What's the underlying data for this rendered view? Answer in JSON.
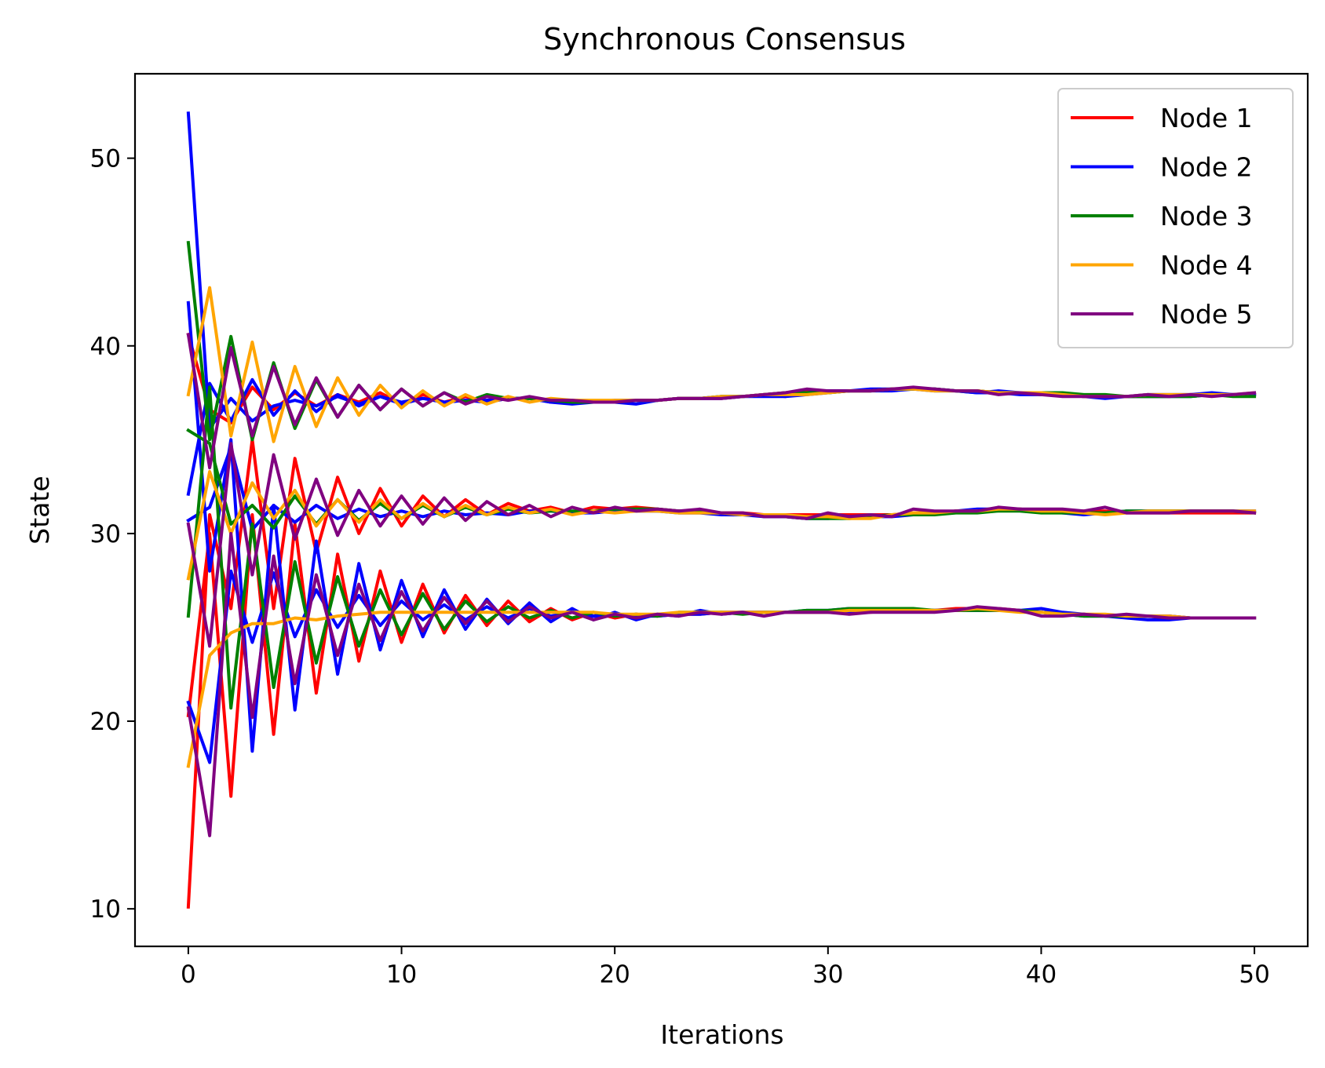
{
  "chart_data": {
    "type": "line",
    "title": "Synchronous Consensus",
    "xlabel": "Iterations",
    "ylabel": "State",
    "xlim": [
      -2.5,
      52.5
    ],
    "ylim": [
      8,
      54.5
    ],
    "xticks": [
      0,
      10,
      20,
      30,
      40,
      50
    ],
    "yticks": [
      10,
      20,
      30,
      40,
      50
    ],
    "grid": false,
    "legend_position": "top-right",
    "x": [
      0,
      1,
      2,
      3,
      4,
      5,
      6,
      7,
      8,
      9,
      10,
      11,
      12,
      13,
      14,
      15,
      16,
      17,
      18,
      19,
      20,
      21,
      22,
      23,
      24,
      25,
      26,
      27,
      28,
      29,
      30,
      31,
      32,
      33,
      34,
      35,
      36,
      37,
      38,
      39,
      40,
      41,
      42,
      43,
      44,
      45,
      46,
      47,
      48,
      49,
      50
    ],
    "series": [
      {
        "name": "Node 1",
        "color": "#ff0000",
        "runs": [
          [
            40.6,
            36.6,
            35.9,
            37.8,
            36.6,
            37.5,
            36.8,
            37.4,
            37.0,
            37.5,
            36.9,
            37.4,
            37.0,
            37.3,
            37.0,
            37.2,
            37.2,
            37.1,
            37.1,
            37.0,
            37.0,
            37.1,
            37.1,
            37.2,
            37.2,
            37.2,
            37.3,
            37.4,
            37.5,
            37.6,
            37.6,
            37.6,
            37.6,
            37.7,
            37.7,
            37.7,
            37.6,
            37.6,
            37.5,
            37.5,
            37.4,
            37.4,
            37.3,
            37.3,
            37.3,
            37.3,
            37.3,
            37.4,
            37.4,
            37.4,
            37.4
          ],
          [
            10.1,
            31.0,
            26.0,
            35.0,
            26.0,
            34.0,
            29.0,
            33.0,
            30.0,
            32.4,
            30.4,
            32.0,
            30.9,
            31.8,
            31.0,
            31.6,
            31.2,
            31.4,
            31.1,
            31.4,
            31.3,
            31.4,
            31.3,
            31.2,
            31.2,
            31.1,
            31.1,
            31.0,
            31.0,
            31.0,
            31.0,
            31.0,
            31.0,
            31.0,
            31.1,
            31.1,
            31.2,
            31.2,
            31.3,
            31.3,
            31.2,
            31.2,
            31.2,
            31.2,
            31.1,
            31.1,
            31.1,
            31.1,
            31.1,
            31.1,
            31.1
          ],
          [
            20.3,
            30.0,
            16.0,
            31.0,
            19.3,
            30.5,
            21.5,
            28.9,
            23.2,
            28.0,
            24.2,
            27.3,
            24.7,
            26.7,
            25.1,
            26.4,
            25.3,
            26.0,
            25.4,
            25.8,
            25.5,
            25.7,
            25.6,
            25.7,
            25.7,
            25.8,
            25.8,
            25.8,
            25.8,
            25.8,
            25.8,
            25.8,
            25.8,
            25.9,
            25.9,
            25.9,
            26.0,
            26.0,
            26.0,
            25.9,
            25.8,
            25.7,
            25.7,
            25.6,
            25.6,
            25.6,
            25.6,
            25.5,
            25.5,
            25.5,
            25.5
          ]
        ]
      },
      {
        "name": "Node 2",
        "color": "#0000ff",
        "runs": [
          [
            52.4,
            35.6,
            37.2,
            36.0,
            36.8,
            37.1,
            36.8,
            37.3,
            36.9,
            37.3,
            37.0,
            37.2,
            37.0,
            37.1,
            37.1,
            37.2,
            37.2,
            37.0,
            36.9,
            37.0,
            37.0,
            36.9,
            37.1,
            37.2,
            37.2,
            37.3,
            37.3,
            37.4,
            37.3,
            37.5,
            37.6,
            37.6,
            37.7,
            37.7,
            37.7,
            37.6,
            37.6,
            37.5,
            37.6,
            37.5,
            37.5,
            37.4,
            37.3,
            37.2,
            37.3,
            37.4,
            37.4,
            37.4,
            37.5,
            37.4,
            37.4
          ],
          [
            32.1,
            38.0,
            36.0,
            38.2,
            36.3,
            37.6,
            36.5,
            37.4,
            36.8,
            37.3,
            36.9,
            37.2,
            37.0,
            37.1,
            37.0,
            37.2,
            37.2,
            37.0,
            37.0,
            37.0,
            37.1,
            37.1,
            37.1,
            37.2,
            37.2,
            37.2,
            37.3,
            37.3,
            37.3,
            37.4,
            37.5,
            37.6,
            37.6,
            37.6,
            37.7,
            37.7,
            37.6,
            37.5,
            37.5,
            37.4,
            37.4,
            37.4,
            37.3,
            37.3,
            37.3,
            37.3,
            37.3,
            37.3,
            37.4,
            37.4,
            37.4
          ],
          [
            42.3,
            28.0,
            35.0,
            18.4,
            31.5,
            20.6,
            29.6,
            22.5,
            28.4,
            23.8,
            27.5,
            24.5,
            27.0,
            24.9,
            26.5,
            25.2,
            26.3,
            25.3,
            26.0,
            25.4,
            25.8,
            25.4,
            25.7,
            25.6,
            25.9,
            25.7,
            25.8,
            25.8,
            25.8,
            25.9,
            25.9,
            26.0,
            26.0,
            26.0,
            25.9,
            25.9,
            25.9,
            25.9,
            25.9,
            25.9,
            26.0,
            25.8,
            25.7,
            25.6,
            25.5,
            25.4,
            25.4,
            25.5,
            25.5,
            25.5,
            25.5
          ],
          [
            21.0,
            17.8,
            28.0,
            24.2,
            27.9,
            24.5,
            27.0,
            25.0,
            26.7,
            25.1,
            26.4,
            25.4,
            26.2,
            25.4,
            26.1,
            25.5,
            26.0,
            25.6,
            25.8,
            25.6,
            25.7,
            25.6,
            25.6,
            25.7,
            25.7,
            25.8,
            25.8,
            25.8,
            25.8,
            25.8,
            25.8,
            25.8,
            25.9,
            25.9,
            25.9,
            25.9,
            25.9,
            25.9,
            25.9,
            25.9,
            25.8,
            25.7,
            25.6,
            25.6,
            25.6,
            25.6,
            25.6,
            25.5,
            25.5,
            25.5,
            25.5
          ],
          [
            30.7,
            31.4,
            34.6,
            30.2,
            31.5,
            30.6,
            31.5,
            30.8,
            31.3,
            30.9,
            31.2,
            30.9,
            31.2,
            31.0,
            31.1,
            31.0,
            31.2,
            31.2,
            31.1,
            31.1,
            31.2,
            31.2,
            31.2,
            31.1,
            31.1,
            31.0,
            31.0,
            30.9,
            30.9,
            30.8,
            30.8,
            30.9,
            30.9,
            30.9,
            31.0,
            31.1,
            31.2,
            31.3,
            31.3,
            31.3,
            31.2,
            31.1,
            31.0,
            31.1,
            31.2,
            31.2,
            31.2,
            31.2,
            31.2,
            31.2,
            31.2
          ]
        ]
      },
      {
        "name": "Node 3",
        "color": "#008000",
        "runs": [
          [
            45.5,
            35.0,
            40.5,
            35.0,
            39.1,
            35.6,
            38.2,
            36.2,
            37.9,
            36.6,
            37.7,
            36.8,
            37.5,
            37.0,
            37.4,
            37.2,
            37.2,
            37.1,
            37.0,
            37.0,
            37.0,
            37.1,
            37.1,
            37.2,
            37.2,
            37.3,
            37.3,
            37.4,
            37.5,
            37.5,
            37.5,
            37.6,
            37.6,
            37.7,
            37.7,
            37.7,
            37.6,
            37.6,
            37.5,
            37.5,
            37.5,
            37.5,
            37.4,
            37.4,
            37.3,
            37.3,
            37.3,
            37.3,
            37.4,
            37.3,
            37.3
          ],
          [
            35.5,
            34.8,
            30.5,
            31.5,
            30.3,
            32.0,
            30.5,
            31.8,
            30.7,
            31.6,
            30.8,
            31.5,
            30.9,
            31.4,
            31.0,
            31.3,
            31.1,
            31.2,
            31.2,
            31.2,
            31.3,
            31.3,
            31.3,
            31.2,
            31.2,
            31.1,
            31.0,
            31.0,
            30.9,
            30.8,
            30.8,
            30.8,
            30.9,
            31.0,
            31.0,
            31.0,
            31.1,
            31.1,
            31.2,
            31.2,
            31.1,
            31.1,
            31.1,
            31.1,
            31.2,
            31.2,
            31.2,
            31.2,
            31.2,
            31.2,
            31.1
          ],
          [
            25.6,
            37.8,
            20.7,
            30.5,
            21.8,
            28.5,
            23.1,
            27.7,
            24.0,
            27.0,
            24.6,
            26.8,
            24.9,
            26.4,
            25.3,
            26.1,
            25.5,
            25.9,
            25.5,
            25.8,
            25.6,
            25.7,
            25.6,
            25.8,
            25.8,
            25.8,
            25.7,
            25.8,
            25.8,
            25.9,
            25.9,
            26.0,
            26.0,
            26.0,
            26.0,
            25.9,
            25.9,
            25.9,
            25.9,
            25.9,
            25.8,
            25.7,
            25.6,
            25.6,
            25.6,
            25.6,
            25.5,
            25.5,
            25.5,
            25.5,
            25.5
          ]
        ]
      },
      {
        "name": "Node 4",
        "color": "#ffa500",
        "runs": [
          [
            37.4,
            43.1,
            35.2,
            40.2,
            34.9,
            38.9,
            35.7,
            38.3,
            36.3,
            37.9,
            36.7,
            37.6,
            36.8,
            37.4,
            36.9,
            37.3,
            37.0,
            37.2,
            37.1,
            37.1,
            37.1,
            37.1,
            37.1,
            37.2,
            37.2,
            37.3,
            37.3,
            37.4,
            37.4,
            37.4,
            37.5,
            37.6,
            37.6,
            37.7,
            37.7,
            37.6,
            37.6,
            37.6,
            37.5,
            37.5,
            37.5,
            37.4,
            37.3,
            37.3,
            37.3,
            37.4,
            37.4,
            37.4,
            37.4,
            37.4,
            37.5
          ],
          [
            27.6,
            33.3,
            30.0,
            32.7,
            30.8,
            32.3,
            30.4,
            31.8,
            30.6,
            31.8,
            30.8,
            31.6,
            30.9,
            31.5,
            31.0,
            31.4,
            31.1,
            31.3,
            31.0,
            31.2,
            31.1,
            31.2,
            31.2,
            31.1,
            31.1,
            31.1,
            31.0,
            31.0,
            31.0,
            30.9,
            30.9,
            30.8,
            30.8,
            31.0,
            31.1,
            31.1,
            31.2,
            31.2,
            31.3,
            31.3,
            31.2,
            31.2,
            31.1,
            31.0,
            31.1,
            31.2,
            31.2,
            31.2,
            31.2,
            31.2,
            31.2
          ],
          [
            17.6,
            23.5,
            24.7,
            25.2,
            25.2,
            25.5,
            25.4,
            25.6,
            25.7,
            25.8,
            25.8,
            25.8,
            25.8,
            25.8,
            25.8,
            25.8,
            25.8,
            25.8,
            25.8,
            25.8,
            25.7,
            25.7,
            25.7,
            25.8,
            25.8,
            25.8,
            25.8,
            25.8,
            25.8,
            25.8,
            25.8,
            25.9,
            25.9,
            25.9,
            25.9,
            25.9,
            25.9,
            26.0,
            25.9,
            25.8,
            25.8,
            25.7,
            25.7,
            25.7,
            25.6,
            25.6,
            25.6,
            25.5,
            25.5,
            25.5,
            25.5
          ]
        ]
      },
      {
        "name": "Node 5",
        "color": "#800080",
        "runs": [
          [
            40.6,
            33.5,
            39.9,
            35.2,
            38.9,
            35.8,
            38.3,
            36.2,
            37.9,
            36.6,
            37.7,
            36.8,
            37.5,
            36.9,
            37.3,
            37.1,
            37.3,
            37.1,
            37.1,
            37.0,
            37.0,
            37.1,
            37.1,
            37.2,
            37.2,
            37.2,
            37.3,
            37.4,
            37.5,
            37.7,
            37.6,
            37.6,
            37.6,
            37.7,
            37.8,
            37.7,
            37.6,
            37.6,
            37.4,
            37.5,
            37.4,
            37.3,
            37.3,
            37.3,
            37.3,
            37.4,
            37.3,
            37.4,
            37.3,
            37.4,
            37.5
          ],
          [
            30.5,
            24.0,
            34.8,
            27.8,
            34.2,
            29.7,
            32.9,
            29.9,
            32.3,
            30.4,
            32.0,
            30.5,
            31.9,
            30.7,
            31.7,
            31.0,
            31.5,
            30.9,
            31.4,
            31.1,
            31.4,
            31.2,
            31.3,
            31.2,
            31.3,
            31.1,
            31.1,
            30.9,
            30.9,
            30.8,
            31.1,
            30.9,
            31.0,
            30.9,
            31.3,
            31.2,
            31.2,
            31.2,
            31.4,
            31.3,
            31.3,
            31.3,
            31.2,
            31.4,
            31.1,
            31.1,
            31.1,
            31.2,
            31.2,
            31.2,
            31.1
          ],
          [
            20.7,
            13.9,
            30.0,
            20.2,
            28.8,
            22.0,
            27.8,
            23.5,
            27.3,
            24.3,
            26.9,
            24.8,
            26.6,
            25.2,
            26.4,
            25.3,
            26.1,
            25.5,
            25.8,
            25.4,
            25.7,
            25.5,
            25.7,
            25.6,
            25.8,
            25.7,
            25.8,
            25.6,
            25.8,
            25.8,
            25.8,
            25.7,
            25.8,
            25.8,
            25.8,
            25.8,
            25.9,
            26.1,
            26.0,
            25.9,
            25.6,
            25.6,
            25.7,
            25.6,
            25.7,
            25.6,
            25.5,
            25.5,
            25.5,
            25.5,
            25.5
          ]
        ]
      }
    ]
  }
}
